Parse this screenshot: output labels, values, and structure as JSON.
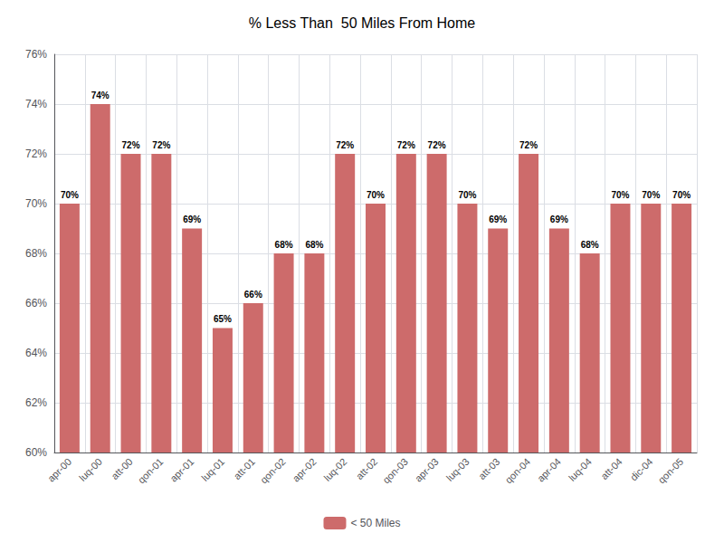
{
  "chart_data": {
    "type": "bar",
    "title": "% Less Than  50 Miles From Home",
    "categories": [
      "apr-00",
      "luq-00",
      "att-00",
      "qon-01",
      "apr-01",
      "luq-01",
      "att-01",
      "qon-02",
      "apr-02",
      "luq-02",
      "att-02",
      "qon-03",
      "apr-03",
      "luq-03",
      "att-03",
      "qon-04",
      "apr-04",
      "luq-04",
      "att-04",
      "dic-04",
      "qon-05"
    ],
    "series": [
      {
        "name": "< 50 Miles",
        "color": "#CD6B6B",
        "values": [
          70,
          74,
          72,
          72,
          69,
          65,
          66,
          68,
          68,
          72,
          70,
          72,
          72,
          70,
          69,
          72,
          69,
          68,
          70,
          70,
          70
        ],
        "value_labels": [
          "70%",
          "74%",
          "72%",
          "72%",
          "69%",
          "65%",
          "66%",
          "68%",
          "68%",
          "72%",
          "70%",
          "72%",
          "72%",
          "70%",
          "69%",
          "72%",
          "69%",
          "68%",
          "70%",
          "70%",
          "70%"
        ]
      }
    ],
    "ylim": [
      60,
      76
    ],
    "yticks": [
      {
        "value": 60,
        "label": "60%"
      },
      {
        "value": 62,
        "label": "62%"
      },
      {
        "value": 64,
        "label": "64%"
      },
      {
        "value": 66,
        "label": "66%"
      },
      {
        "value": 68,
        "label": "68%"
      },
      {
        "value": 70,
        "label": "70%"
      },
      {
        "value": 72,
        "label": "72%"
      },
      {
        "value": 74,
        "label": "74%"
      },
      {
        "value": 76,
        "label": "76%"
      }
    ],
    "grid": true,
    "legend": "bottom",
    "data_labels": true
  }
}
